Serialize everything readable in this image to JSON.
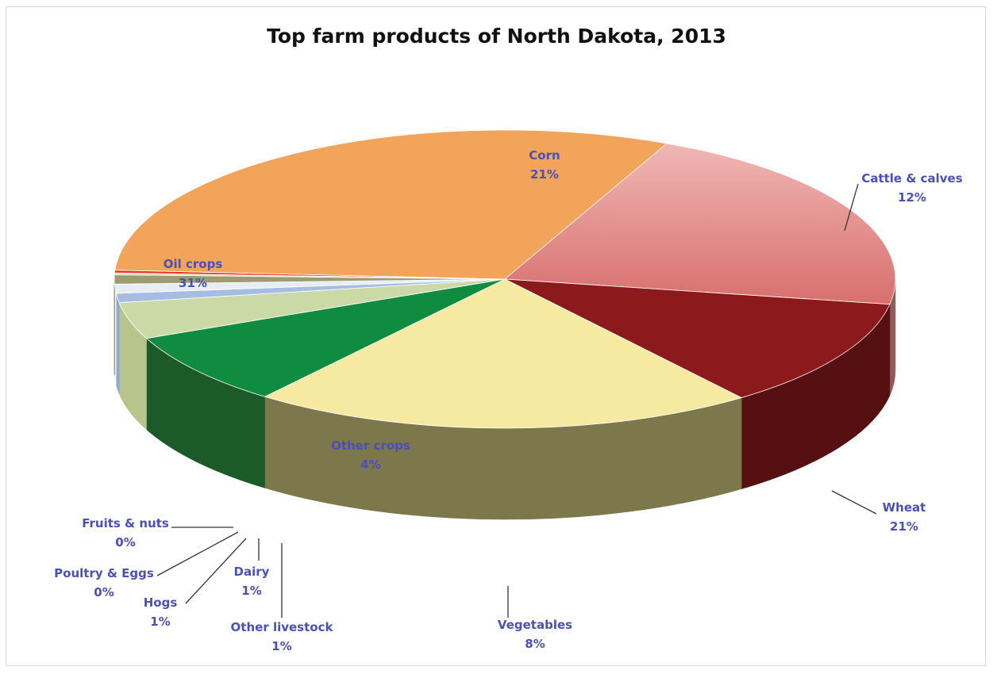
{
  "chart_data": {
    "type": "pie",
    "title": "Top farm products of North Dakota, 2013",
    "slices": [
      {
        "name": "Corn",
        "label_value": "21%",
        "value": 21,
        "color": "#e7928f"
      },
      {
        "name": "Cattle & calves",
        "label_value": "12%",
        "value": 12,
        "color": "#8c1a1c"
      },
      {
        "name": "Wheat",
        "label_value": "21%",
        "value": 21,
        "color": "#f6eaa2"
      },
      {
        "name": "Vegetables",
        "label_value": "8%",
        "value": 8,
        "color": "#0f8c3f"
      },
      {
        "name": "Other crops",
        "label_value": "4%",
        "value": 4,
        "color": "#cbd9a6"
      },
      {
        "name": "Other livestock",
        "label_value": "1%",
        "value": 1,
        "color": "#a5bde3"
      },
      {
        "name": "Dairy",
        "label_value": "1%",
        "value": 1,
        "color": "#e8ecf3"
      },
      {
        "name": "Hogs",
        "label_value": "1%",
        "value": 1,
        "color": "#9c9c70"
      },
      {
        "name": "Poultry & Eggs",
        "label_value": "0%",
        "value": 0.2,
        "color": "#d0d0a8"
      },
      {
        "name": "Fruits & nuts",
        "label_value": "0%",
        "value": 0.3,
        "color": "#e8331f"
      },
      {
        "name": "Oil crops",
        "label_value": "31%",
        "value": 31,
        "color": "#f2a45a"
      }
    ],
    "colors": {
      "label_text": "#4a50b5",
      "frame_border": "#d4d4d4"
    }
  }
}
